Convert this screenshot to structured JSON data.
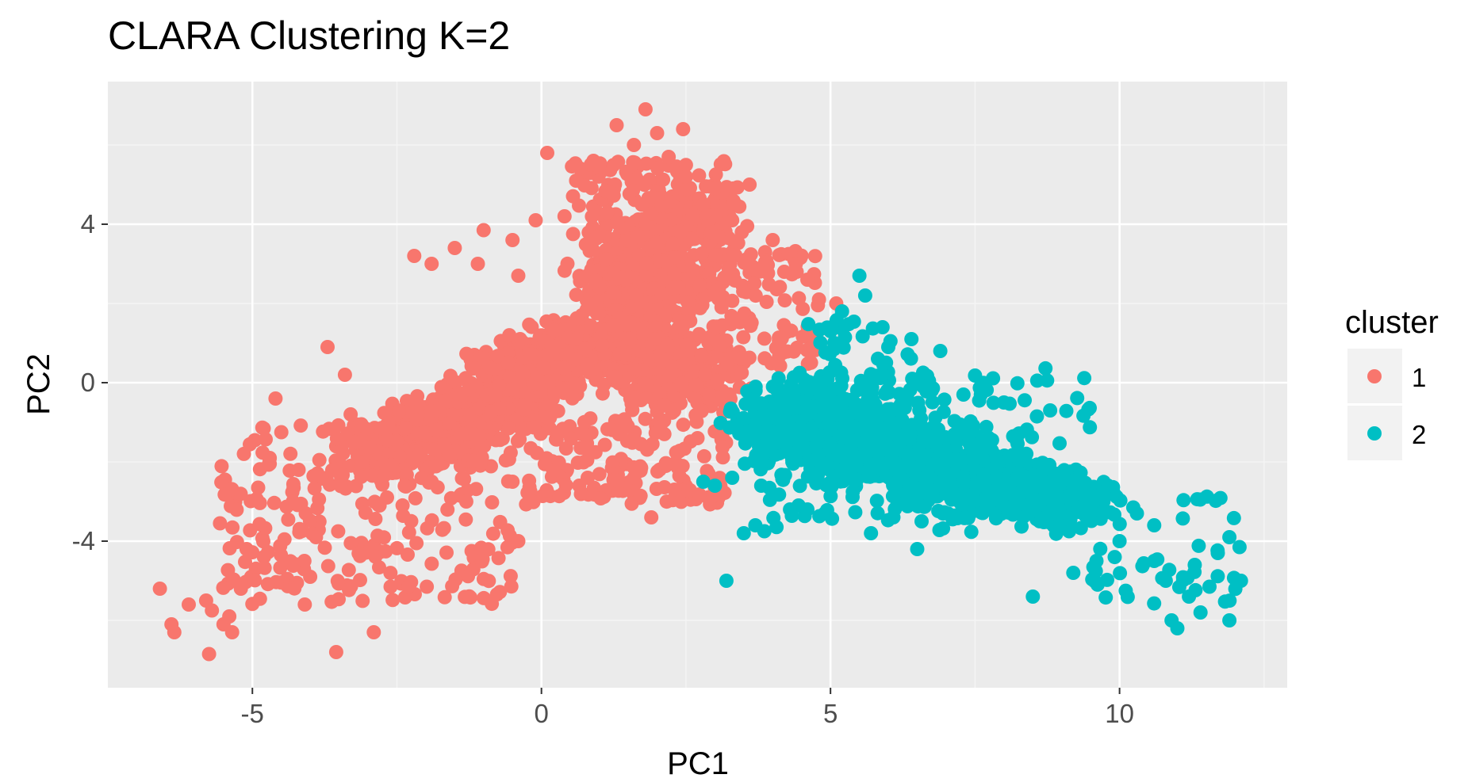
{
  "chart_data": {
    "type": "scatter",
    "title": "CLARA Clustering K=2",
    "xlabel": "PC1",
    "ylabel": "PC2",
    "xlim": [
      -7.5,
      12.9
    ],
    "ylim": [
      -7.7,
      7.6
    ],
    "x_ticks": [
      -5,
      0,
      5,
      10
    ],
    "y_ticks": [
      -4,
      0,
      4
    ],
    "x_tick_labels": [
      "-5",
      "0",
      "5",
      "10"
    ],
    "y_tick_labels": [
      "-4",
      "0",
      "4"
    ],
    "grid": true,
    "legend": {
      "title": "cluster",
      "placement": "right"
    },
    "colors": {
      "panel": "#EBEBEB",
      "grid_major": "#FFFFFF",
      "grid_minor": "#F5F5F5",
      "legend_key": "#F2F2F2"
    },
    "series": [
      {
        "name": "1",
        "color": "#F8766D",
        "points": [
          [
            -6.6,
            -5.2
          ],
          [
            -6.4,
            -6.1
          ],
          [
            -6.35,
            -6.3
          ],
          [
            -6.1,
            -5.6
          ],
          [
            -5.8,
            -5.5
          ],
          [
            -5.7,
            -5.75
          ],
          [
            -5.75,
            -6.85
          ],
          [
            -5.5,
            -6.1
          ],
          [
            -5.4,
            -5.9
          ],
          [
            -5.35,
            -6.3
          ],
          [
            -5.2,
            -5.2
          ],
          [
            -5.1,
            -4.2
          ],
          [
            -4.8,
            -4.4
          ],
          [
            -4.9,
            -2.65
          ],
          [
            -4.7,
            -1.9
          ],
          [
            -4.6,
            -0.4
          ],
          [
            -4.5,
            -1.25
          ],
          [
            -4.3,
            -3.0
          ],
          [
            -4.2,
            -2.2
          ],
          [
            -4.1,
            -4.5
          ],
          [
            -3.9,
            -3.9
          ],
          [
            -3.7,
            0.9
          ],
          [
            -3.55,
            -6.8
          ],
          [
            -3.4,
            0.2
          ],
          [
            -3.3,
            -0.8
          ],
          [
            -3.1,
            -2.0
          ],
          [
            -2.9,
            -6.3
          ],
          [
            -2.8,
            -3.1
          ],
          [
            -2.3,
            -5.15
          ],
          [
            -2.2,
            3.2
          ],
          [
            -1.9,
            3.0
          ],
          [
            -1.5,
            3.4
          ],
          [
            -1.1,
            3.0
          ],
          [
            -1.0,
            3.85
          ],
          [
            -0.5,
            3.6
          ],
          [
            -0.4,
            2.7
          ],
          [
            -0.4,
            -4.0
          ],
          [
            -0.1,
            4.1
          ],
          [
            0.1,
            5.8
          ],
          [
            0.4,
            4.2
          ],
          [
            0.6,
            5.1
          ],
          [
            0.9,
            5.6
          ],
          [
            1.2,
            4.8
          ],
          [
            1.3,
            6.5
          ],
          [
            1.6,
            6.0
          ],
          [
            1.8,
            6.9
          ],
          [
            2.0,
            6.3
          ],
          [
            2.2,
            5.7
          ],
          [
            2.45,
            6.4
          ],
          [
            2.5,
            5.2
          ],
          [
            2.8,
            4.5
          ],
          [
            3.0,
            4.9
          ],
          [
            3.3,
            4.1
          ],
          [
            3.6,
            5.0
          ],
          [
            4.0,
            3.6
          ],
          [
            4.2,
            2.8
          ],
          [
            4.4,
            3.0
          ],
          [
            4.6,
            2.6
          ],
          [
            4.8,
            2.1
          ],
          [
            5.1,
            2.0
          ],
          [
            3.2,
            0.5
          ],
          [
            2.9,
            -0.3
          ],
          [
            2.7,
            -1.4
          ],
          [
            1.6,
            -2.4
          ],
          [
            1.9,
            -3.4
          ],
          [
            2.3,
            -2.7
          ],
          [
            0.8,
            -2.4
          ],
          [
            0.2,
            -2.2
          ],
          [
            -0.5,
            -2.5
          ],
          [
            -1.3,
            -3.0
          ],
          [
            -1.9,
            -2.5
          ]
        ],
        "core": [
          {
            "cx": -1.6,
            "cy": -1.1,
            "rx": 2.4,
            "ry": 0.95,
            "deg": 30
          },
          {
            "cx": 0.2,
            "cy": 0.6,
            "rx": 2.0,
            "ry": 1.0,
            "deg": 32
          },
          {
            "cx": 1.8,
            "cy": 2.6,
            "rx": 1.4,
            "ry": 1.4,
            "deg": 28
          },
          {
            "cx": 2.4,
            "cy": 4.2,
            "rx": 0.95,
            "ry": 0.8,
            "deg": 0
          },
          {
            "cx": 2.2,
            "cy": 0.4,
            "rx": 1.5,
            "ry": 1.2,
            "deg": -20
          }
        ],
        "spread": [
          {
            "x": [
              -5.6,
              -0.5
            ],
            "y": [
              -5.6,
              -1.0
            ],
            "n": 240
          },
          {
            "x": [
              -0.3,
              3.2
            ],
            "y": [
              -3.1,
              -0.8
            ],
            "n": 160
          },
          {
            "x": [
              3.0,
              4.8
            ],
            "y": [
              0.4,
              3.4
            ],
            "n": 110
          },
          {
            "x": [
              0.5,
              3.6
            ],
            "y": [
              3.5,
              5.6
            ],
            "n": 140
          }
        ]
      },
      {
        "name": "2",
        "color": "#00BFC4",
        "points": [
          [
            3.2,
            -5.0
          ],
          [
            3.5,
            -3.8
          ],
          [
            3.7,
            -3.6
          ],
          [
            4.3,
            -3.2
          ],
          [
            4.6,
            -3.2
          ],
          [
            5.0,
            1.3
          ],
          [
            5.2,
            1.8
          ],
          [
            5.5,
            2.7
          ],
          [
            5.6,
            2.2
          ],
          [
            5.9,
            1.4
          ],
          [
            6.0,
            0.9
          ],
          [
            6.4,
            1.1
          ],
          [
            6.9,
            0.8
          ],
          [
            7.3,
            -0.3
          ],
          [
            7.6,
            -0.3
          ],
          [
            8.0,
            -0.5
          ],
          [
            8.8,
            -0.7
          ],
          [
            8.2,
            -3.0
          ],
          [
            8.5,
            -5.4
          ],
          [
            9.2,
            -4.8
          ],
          [
            9.6,
            -4.5
          ],
          [
            10.0,
            -4.0
          ],
          [
            10.3,
            -3.3
          ],
          [
            10.6,
            -3.6
          ],
          [
            10.8,
            -5.0
          ],
          [
            10.9,
            -6.0
          ],
          [
            11.0,
            -6.2
          ],
          [
            11.4,
            -5.8
          ],
          [
            11.7,
            -4.3
          ],
          [
            11.9,
            -3.9
          ],
          [
            11.9,
            -6.0
          ],
          [
            12.1,
            -5.0
          ],
          [
            11.2,
            -5.4
          ],
          [
            10.6,
            -4.5
          ],
          [
            9.8,
            -2.6
          ],
          [
            7.0,
            -2.8
          ],
          [
            6.5,
            -4.2
          ],
          [
            5.7,
            -3.8
          ],
          [
            4.9,
            -3.3
          ],
          [
            2.8,
            -2.5
          ],
          [
            3.0,
            -2.6
          ],
          [
            3.3,
            -2.4
          ],
          [
            9.4,
            -3.0
          ],
          [
            11.3,
            -4.6
          ]
        ],
        "core": [
          {
            "cx": 5.0,
            "cy": -1.3,
            "rx": 1.8,
            "ry": 1.3,
            "deg": -12
          },
          {
            "cx": 7.2,
            "cy": -2.2,
            "rx": 1.9,
            "ry": 1.1,
            "deg": -18
          },
          {
            "cx": 8.7,
            "cy": -2.8,
            "rx": 1.2,
            "ry": 0.9,
            "deg": -20
          }
        ],
        "spread": [
          {
            "x": [
              3.8,
              9.6
            ],
            "y": [
              -3.8,
              0.4
            ],
            "n": 200
          },
          {
            "x": [
              9.5,
              12.1
            ],
            "y": [
              -5.6,
              -2.8
            ],
            "n": 50
          },
          {
            "x": [
              4.6,
              6.5
            ],
            "y": [
              -0.2,
              1.6
            ],
            "n": 35
          }
        ]
      }
    ]
  }
}
